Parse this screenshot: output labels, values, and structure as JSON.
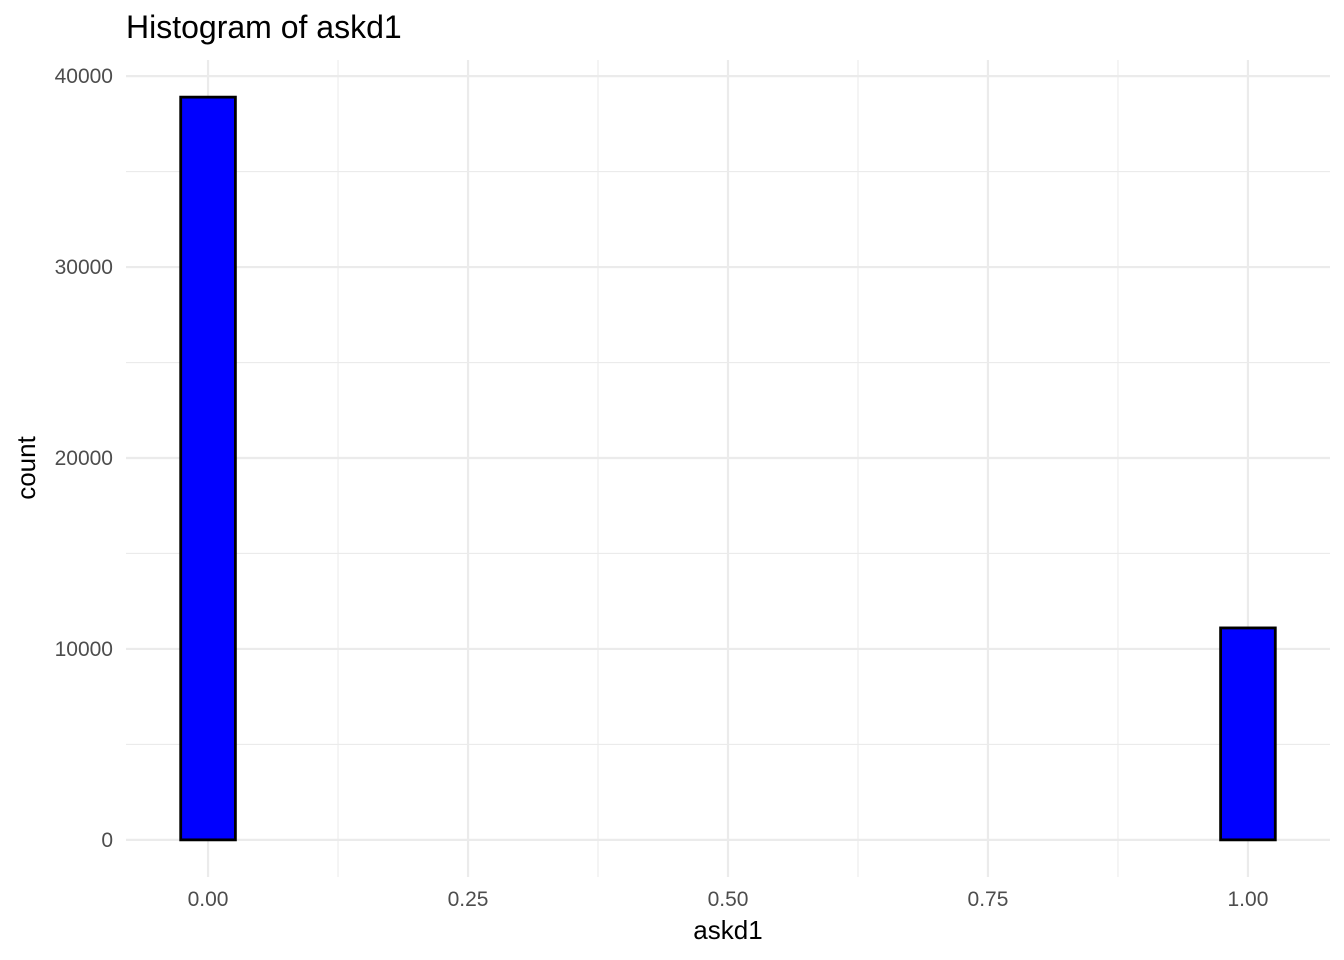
{
  "chart_data": {
    "type": "bar",
    "title": "Histogram of askd1",
    "xlabel": "askd1",
    "ylabel": "count",
    "bins": [
      {
        "x0": -0.0263,
        "x1": 0.0263,
        "count": 38900
      },
      {
        "x0": 0.0263,
        "x1": 0.0789,
        "count": 0
      },
      {
        "x0": 0.0789,
        "x1": 0.1316,
        "count": 0
      },
      {
        "x0": 0.1316,
        "x1": 0.1842,
        "count": 0
      },
      {
        "x0": 0.1842,
        "x1": 0.2368,
        "count": 0
      },
      {
        "x0": 0.2368,
        "x1": 0.2895,
        "count": 0
      },
      {
        "x0": 0.2895,
        "x1": 0.3421,
        "count": 0
      },
      {
        "x0": 0.3421,
        "x1": 0.3947,
        "count": 0
      },
      {
        "x0": 0.3947,
        "x1": 0.4474,
        "count": 0
      },
      {
        "x0": 0.4474,
        "x1": 0.5,
        "count": 0
      },
      {
        "x0": 0.5,
        "x1": 0.5526,
        "count": 0
      },
      {
        "x0": 0.5526,
        "x1": 0.6053,
        "count": 0
      },
      {
        "x0": 0.6053,
        "x1": 0.6579,
        "count": 0
      },
      {
        "x0": 0.6579,
        "x1": 0.7105,
        "count": 0
      },
      {
        "x0": 0.7105,
        "x1": 0.7632,
        "count": 0
      },
      {
        "x0": 0.7632,
        "x1": 0.8158,
        "count": 0
      },
      {
        "x0": 0.8158,
        "x1": 0.8684,
        "count": 0
      },
      {
        "x0": 0.8684,
        "x1": 0.9211,
        "count": 0
      },
      {
        "x0": 0.9211,
        "x1": 0.9737,
        "count": 0
      },
      {
        "x0": 0.9737,
        "x1": 1.0263,
        "count": 11100
      }
    ],
    "x_ticks": [
      0,
      0.25,
      0.5,
      0.75,
      1
    ],
    "x_tick_labels": [
      "0.00",
      "0.25",
      "0.50",
      "0.75",
      "1.00"
    ],
    "y_ticks": [
      0,
      10000,
      20000,
      30000,
      40000
    ],
    "y_tick_labels": [
      "0",
      "10000",
      "20000",
      "30000",
      "40000"
    ],
    "xlim": [
      -0.0789,
      1.0789
    ],
    "ylim": [
      -1945,
      40845
    ],
    "grid": true,
    "colors": {
      "bar_fill": "#0000ff",
      "bar_outline": "#000000",
      "grid": "#ebebeb"
    }
  }
}
